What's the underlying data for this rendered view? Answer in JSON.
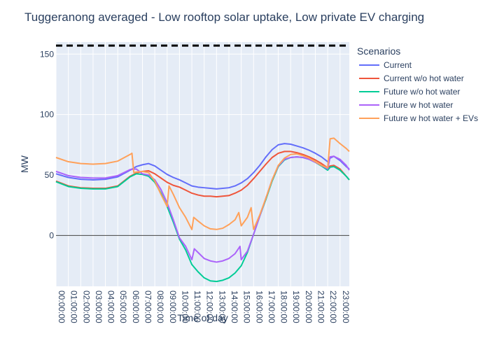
{
  "chart_data": {
    "type": "line",
    "title": "Tuggeranong averaged - Low rooftop solar uptake, Low private EV charging",
    "xlabel": "Time of day",
    "ylabel": "MW",
    "ylim": [
      -42,
      160
    ],
    "yticks": [
      0,
      50,
      100,
      150
    ],
    "x_tick_labels": [
      "00:00:00",
      "01:00:00",
      "02:00:00",
      "03:00:00",
      "04:00:00",
      "05:00:00",
      "06:00:00",
      "07:00:00",
      "08:00:00",
      "09:00:00",
      "10:00:00",
      "11:00:00",
      "12:00:00",
      "13:00:00",
      "14:00:00",
      "15:00:00",
      "16:00:00",
      "17:00:00",
      "18:00:00",
      "19:00:00",
      "20:00:00",
      "21:00:00",
      "22:00:00",
      "23:00:00"
    ],
    "x_unit": "hours",
    "xlim": [
      0,
      23.75
    ],
    "grid": true,
    "legend_title": "Scenarios",
    "legend_position": "right",
    "reference_lines": [
      {
        "y": 0,
        "style": "solid",
        "color": "#444444"
      },
      {
        "y": 157,
        "style": "dashed",
        "color": "#000000"
      }
    ],
    "series": [
      {
        "name": "Current",
        "color": "#636efa",
        "points": [
          [
            0,
            51
          ],
          [
            1,
            48
          ],
          [
            2,
            46.5
          ],
          [
            3,
            46
          ],
          [
            4,
            46.5
          ],
          [
            5,
            48.5
          ],
          [
            6,
            54
          ],
          [
            6.5,
            57
          ],
          [
            7,
            58.5
          ],
          [
            7.5,
            59.5
          ],
          [
            8,
            57.5
          ],
          [
            8.5,
            54
          ],
          [
            9,
            50.5
          ],
          [
            9.5,
            48
          ],
          [
            10,
            46
          ],
          [
            10.5,
            43.5
          ],
          [
            11,
            41
          ],
          [
            11.5,
            40
          ],
          [
            12,
            39.5
          ],
          [
            12.5,
            39
          ],
          [
            13,
            38.5
          ],
          [
            14,
            39.5
          ],
          [
            14.5,
            41
          ],
          [
            15,
            43.5
          ],
          [
            15.5,
            47
          ],
          [
            16,
            52
          ],
          [
            16.5,
            58
          ],
          [
            17,
            65
          ],
          [
            17.5,
            71
          ],
          [
            18,
            75
          ],
          [
            18.5,
            76
          ],
          [
            19,
            75.5
          ],
          [
            19.5,
            74
          ],
          [
            20,
            72.5
          ],
          [
            20.5,
            70.5
          ],
          [
            21,
            68
          ],
          [
            21.5,
            65
          ],
          [
            22,
            61
          ],
          [
            22.2,
            64
          ],
          [
            22.5,
            65.5
          ],
          [
            23,
            62
          ],
          [
            23.5,
            57
          ],
          [
            23.75,
            55
          ]
        ]
      },
      {
        "name": "Current w/o hot water",
        "color": "#EF553B",
        "points": [
          [
            0,
            45
          ],
          [
            1,
            41
          ],
          [
            2,
            39.5
          ],
          [
            3,
            39
          ],
          [
            4,
            39
          ],
          [
            5,
            41
          ],
          [
            6,
            49
          ],
          [
            6.5,
            51.5
          ],
          [
            7,
            53
          ],
          [
            7.5,
            53.5
          ],
          [
            8,
            51
          ],
          [
            8.5,
            47.5
          ],
          [
            9,
            44
          ],
          [
            9.5,
            41.5
          ],
          [
            10,
            40
          ],
          [
            10.5,
            37.5
          ],
          [
            11,
            35
          ],
          [
            11.5,
            33.5
          ],
          [
            12,
            32.5
          ],
          [
            12.5,
            32.5
          ],
          [
            13,
            32
          ],
          [
            14,
            33
          ],
          [
            14.5,
            35
          ],
          [
            15,
            37.5
          ],
          [
            15.5,
            41.5
          ],
          [
            16,
            47
          ],
          [
            16.5,
            53
          ],
          [
            17,
            59
          ],
          [
            17.5,
            64.5
          ],
          [
            18,
            68
          ],
          [
            18.5,
            69.5
          ],
          [
            19,
            69.5
          ],
          [
            19.5,
            68.5
          ],
          [
            20,
            67
          ],
          [
            20.5,
            65
          ],
          [
            21,
            62.5
          ],
          [
            21.5,
            59.5
          ],
          [
            22,
            56
          ],
          [
            22.2,
            57.5
          ],
          [
            22.5,
            58
          ],
          [
            23,
            55
          ],
          [
            23.5,
            49
          ],
          [
            23.75,
            46
          ]
        ]
      },
      {
        "name": "Future w/o hot water",
        "color": "#00cc96",
        "points": [
          [
            0,
            44.5
          ],
          [
            1,
            40.5
          ],
          [
            2,
            39
          ],
          [
            3,
            38.5
          ],
          [
            4,
            38.5
          ],
          [
            5,
            40.5
          ],
          [
            6,
            48.5
          ],
          [
            6.5,
            51
          ],
          [
            7,
            50.5
          ],
          [
            7.5,
            49
          ],
          [
            8,
            44
          ],
          [
            8.5,
            35
          ],
          [
            9,
            24
          ],
          [
            9.5,
            11
          ],
          [
            10,
            -3
          ],
          [
            10.5,
            -12
          ],
          [
            11,
            -24
          ],
          [
            11.5,
            -30
          ],
          [
            12,
            -35
          ],
          [
            12.5,
            -37.5
          ],
          [
            13,
            -38
          ],
          [
            13.5,
            -37
          ],
          [
            14,
            -35
          ],
          [
            14.5,
            -31
          ],
          [
            15,
            -25
          ],
          [
            15.5,
            -14
          ],
          [
            16,
            1
          ],
          [
            16.5,
            16
          ],
          [
            17,
            30
          ],
          [
            17.5,
            45
          ],
          [
            18,
            57
          ],
          [
            18.5,
            62.5
          ],
          [
            19,
            64.5
          ],
          [
            19.5,
            65
          ],
          [
            20,
            64.5
          ],
          [
            20.5,
            63
          ],
          [
            21,
            60.5
          ],
          [
            21.5,
            57.5
          ],
          [
            22,
            54
          ],
          [
            22.2,
            56.5
          ],
          [
            22.5,
            57
          ],
          [
            23,
            54
          ],
          [
            23.5,
            49
          ],
          [
            23.75,
            46
          ]
        ]
      },
      {
        "name": "Future w hot water",
        "color": "#ab63fa",
        "points": [
          [
            0,
            53
          ],
          [
            1,
            49.5
          ],
          [
            2,
            48
          ],
          [
            3,
            47.5
          ],
          [
            4,
            47.5
          ],
          [
            5,
            49.5
          ],
          [
            6,
            54.5
          ],
          [
            6.5,
            55
          ],
          [
            7,
            51
          ],
          [
            7.5,
            50
          ],
          [
            8,
            46
          ],
          [
            8.5,
            38
          ],
          [
            9,
            27
          ],
          [
            9.5,
            13
          ],
          [
            10,
            -2
          ],
          [
            10.5,
            -9
          ],
          [
            11,
            -20
          ],
          [
            11.2,
            -11
          ],
          [
            11.5,
            -14
          ],
          [
            12,
            -19
          ],
          [
            12.5,
            -21
          ],
          [
            13,
            -22
          ],
          [
            13.5,
            -21
          ],
          [
            14,
            -19
          ],
          [
            14.5,
            -15
          ],
          [
            14.9,
            -9
          ],
          [
            15,
            -20
          ],
          [
            15.5,
            -13
          ],
          [
            16,
            1
          ],
          [
            16.5,
            16
          ],
          [
            17,
            31
          ],
          [
            17.5,
            46
          ],
          [
            18,
            57.5
          ],
          [
            18.5,
            63
          ],
          [
            19,
            64.5
          ],
          [
            19.5,
            65
          ],
          [
            20,
            64.5
          ],
          [
            20.5,
            63
          ],
          [
            21,
            60.5
          ],
          [
            21.5,
            58
          ],
          [
            22,
            55
          ],
          [
            22.2,
            65
          ],
          [
            22.5,
            65.5
          ],
          [
            23,
            63
          ],
          [
            23.5,
            58
          ],
          [
            23.75,
            54
          ]
        ]
      },
      {
        "name": "Future w hot water + EVs",
        "color": "#FFA15A",
        "points": [
          [
            0,
            64.5
          ],
          [
            1,
            61
          ],
          [
            2,
            59.5
          ],
          [
            3,
            59
          ],
          [
            4,
            59.5
          ],
          [
            5,
            61.5
          ],
          [
            6,
            67
          ],
          [
            6.15,
            68
          ],
          [
            6.3,
            52
          ],
          [
            6.5,
            52.5
          ],
          [
            7,
            53
          ],
          [
            7.5,
            52
          ],
          [
            8,
            45
          ],
          [
            8.5,
            34
          ],
          [
            9,
            24
          ],
          [
            9.15,
            41
          ],
          [
            9.5,
            34
          ],
          [
            10,
            23
          ],
          [
            10.5,
            15
          ],
          [
            11,
            5
          ],
          [
            11.15,
            15
          ],
          [
            11.5,
            12
          ],
          [
            12,
            8
          ],
          [
            12.2,
            7
          ],
          [
            12.5,
            5.5
          ],
          [
            13,
            5
          ],
          [
            13.5,
            6
          ],
          [
            14,
            9
          ],
          [
            14.5,
            13
          ],
          [
            14.8,
            19
          ],
          [
            15,
            8
          ],
          [
            15.5,
            15
          ],
          [
            15.8,
            23
          ],
          [
            16,
            5
          ],
          [
            16.5,
            17
          ],
          [
            17,
            31
          ],
          [
            17.5,
            46
          ],
          [
            18,
            58
          ],
          [
            18.5,
            64
          ],
          [
            19,
            67
          ],
          [
            19.5,
            67.5
          ],
          [
            20,
            66
          ],
          [
            20.5,
            64
          ],
          [
            21,
            61
          ],
          [
            21.5,
            58
          ],
          [
            22,
            56
          ],
          [
            22.2,
            80
          ],
          [
            22.5,
            80.5
          ],
          [
            23,
            76
          ],
          [
            23.5,
            72
          ],
          [
            23.75,
            69.5
          ]
        ]
      }
    ]
  }
}
